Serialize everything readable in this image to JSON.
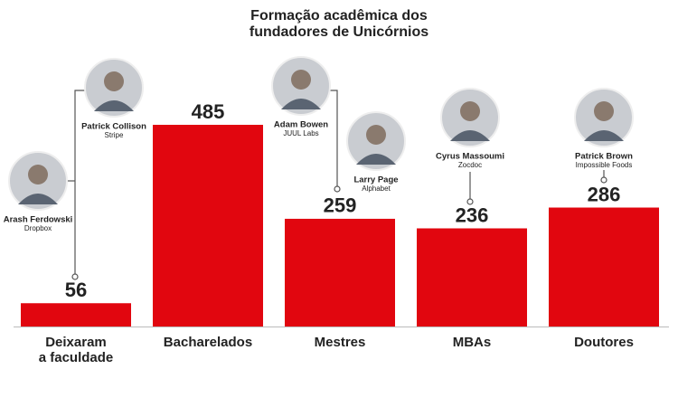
{
  "chart_data": {
    "type": "bar",
    "title": [
      "Formação acadêmica dos",
      "fundadores de Unicórnios"
    ],
    "categories": [
      [
        "Deixaram",
        "a faculdade"
      ],
      [
        "Bacharelados"
      ],
      [
        "Mestres"
      ],
      [
        "MBAs"
      ],
      [
        "Doutores"
      ]
    ],
    "values": [
      56,
      485,
      259,
      236,
      286
    ],
    "color": "#e1060f",
    "annotations": [
      {
        "name": "Arash Ferdowski",
        "company": "Dropbox"
      },
      {
        "name": "Patrick Collison",
        "company": "Stripe"
      },
      {
        "name": "Adam Bowen",
        "company": "JUUL Labs"
      },
      {
        "name": "Larry Page",
        "company": "Alphabet"
      },
      {
        "name": "Cyrus Massoumi",
        "company": "Zocdoc"
      },
      {
        "name": "Patrick Brown",
        "company": "Impossible Foods"
      }
    ]
  }
}
